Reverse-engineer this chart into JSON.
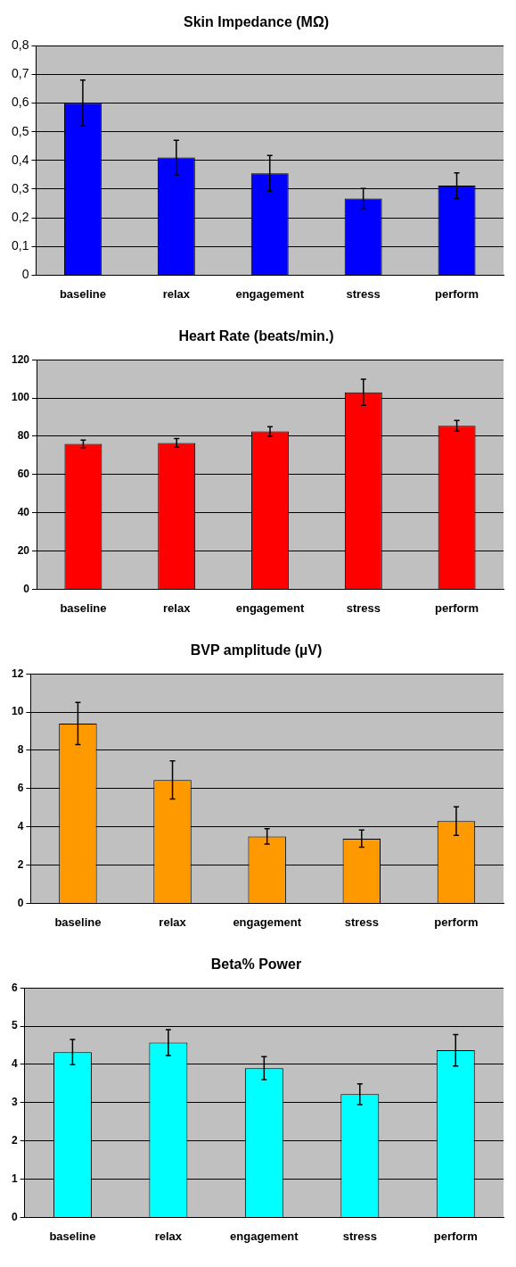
{
  "chart_data": [
    {
      "type": "bar",
      "title": "Skin Impedance (MΩ)",
      "categories": [
        "baseline",
        "relax",
        "engagement",
        "stress",
        "perform"
      ],
      "values": [
        0.6,
        0.41,
        0.355,
        0.267,
        0.312
      ],
      "errors": [
        0.08,
        0.06,
        0.062,
        0.035,
        0.045
      ],
      "color": "#0000ff",
      "ylim": [
        0,
        0.8
      ],
      "yticks": [
        0,
        {
          "value": 0.1,
          "label": "0,1"
        },
        {
          "value": 0.2,
          "label": "0,2"
        },
        {
          "value": 0.3,
          "label": "0,3"
        },
        {
          "value": 0.4,
          "label": "0,4"
        },
        {
          "value": 0.5,
          "label": "0,5"
        },
        {
          "value": 0.6,
          "label": "0,6"
        },
        {
          "value": 0.7,
          "label": "0,7"
        },
        {
          "value": 0.8,
          "label": "0,8"
        }
      ],
      "grid": "y",
      "legend": false
    },
    {
      "type": "bar",
      "title": "Heart Rate (beats/min.)",
      "categories": [
        "baseline",
        "relax",
        "engagement",
        "stress",
        "perform"
      ],
      "values": [
        76,
        76.5,
        82.5,
        103,
        85.5
      ],
      "errors": [
        2,
        2.3,
        2.5,
        6.8,
        2.8
      ],
      "color": "#ff0000",
      "ylim": [
        0,
        120
      ],
      "yticks": [
        0,
        20,
        40,
        60,
        80,
        100,
        120
      ],
      "grid": "y",
      "legend": false
    },
    {
      "type": "bar",
      "title": "BVP amplitude (µV)",
      "categories": [
        "baseline",
        "relax",
        "engagement",
        "stress",
        "perform"
      ],
      "values": [
        9.4,
        6.45,
        3.5,
        3.38,
        4.3
      ],
      "errors": [
        1.1,
        1.0,
        0.4,
        0.45,
        0.75
      ],
      "color": "#ff9900",
      "ylim": [
        0,
        12
      ],
      "yticks": [
        0,
        2,
        4,
        6,
        8,
        10,
        12
      ],
      "grid": "y",
      "legend": false
    },
    {
      "type": "bar",
      "title": "Beta% Power",
      "categories": [
        "baseline",
        "relax",
        "engagement",
        "stress",
        "perform"
      ],
      "values": [
        4.32,
        4.57,
        3.9,
        3.22,
        4.37
      ],
      "errors": [
        0.33,
        0.34,
        0.3,
        0.27,
        0.41
      ],
      "color": "#00ffff",
      "ylim": [
        0,
        6
      ],
      "yticks": [
        0,
        1,
        2,
        3,
        4,
        5,
        6
      ],
      "grid": "y",
      "legend": false
    }
  ]
}
